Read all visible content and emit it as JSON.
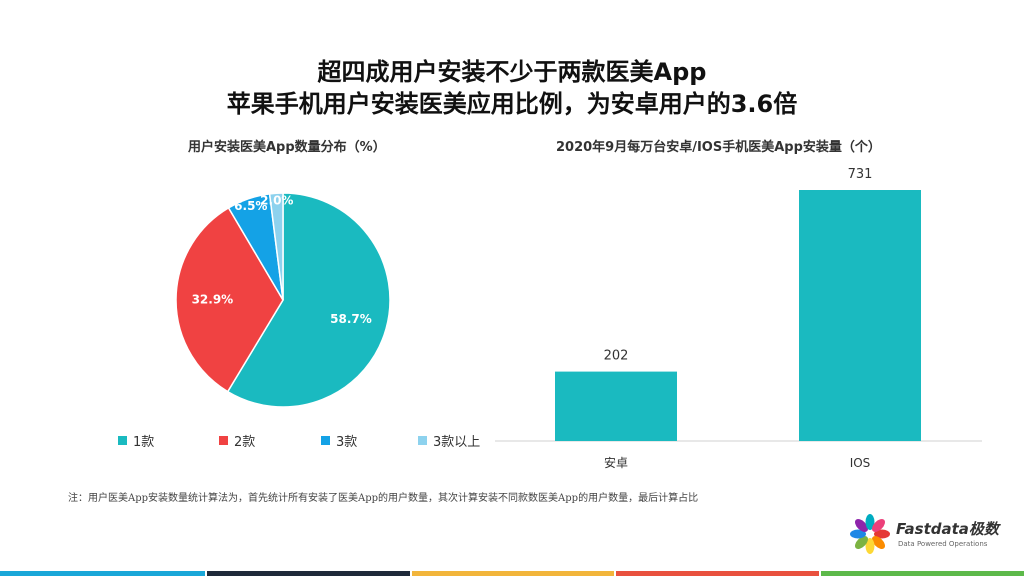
{
  "titles": {
    "line1": "超四成用户安装不少于两款医美App",
    "line2": "苹果手机用户安装医美应用比例，为安卓用户的3.6倍"
  },
  "chart_data": [
    {
      "type": "pie",
      "title": "用户安装医美App数量分布（%）",
      "slices": [
        {
          "label": "1款",
          "value": 58.7,
          "display": "58.7%",
          "color": "#1ABAC0"
        },
        {
          "label": "2款",
          "value": 32.9,
          "display": "32.9%",
          "color": "#F04242"
        },
        {
          "label": "3款",
          "value": 6.5,
          "display": "6.5%",
          "color": "#14A2E6"
        },
        {
          "label": "3款以上",
          "value": 2.0,
          "display": "2.0%",
          "color": "#8DD2EE"
        }
      ],
      "legend_position": "bottom"
    },
    {
      "type": "bar",
      "title": "2020年9月每万台安卓/IOS手机医美App安装量（个）",
      "categories": [
        "安卓",
        "IOS"
      ],
      "values": [
        202,
        731
      ],
      "color": "#1ABAC0"
    }
  ],
  "note": "注：用户医美App安装数量统计算法为，首先统计所有安装了医美App的用户数量，其次计算安装不同款数医美App的用户数量，最后计算占比",
  "logo": {
    "brand": "Fastdata极数",
    "tagline": "Data Powered Operations",
    "petal_colors": [
      "#E53935",
      "#FB8C00",
      "#FDD835",
      "#7CB342",
      "#1E88E5",
      "#8E24AA",
      "#00ACC1",
      "#EC407A"
    ]
  },
  "footer_colors": [
    "#1AA7D8",
    "#1F2A3A",
    "#F2B53B",
    "#E9513E",
    "#5DB94A"
  ]
}
